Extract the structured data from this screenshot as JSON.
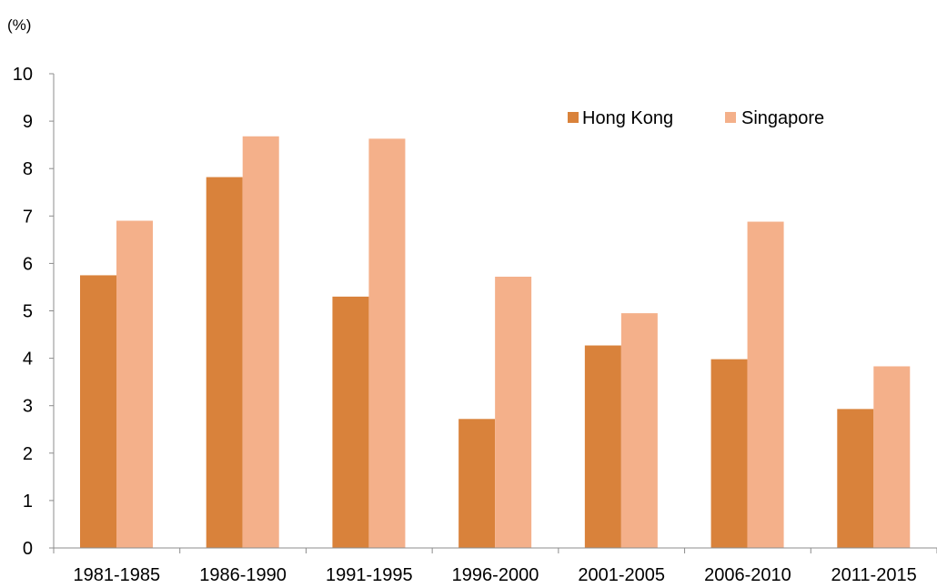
{
  "chart_data": {
    "type": "bar",
    "unit_label": "(%)",
    "categories": [
      "1981-1985",
      "1986-1990",
      "1991-1995",
      "1996-2000",
      "2001-2005",
      "2006-2010",
      "2011-2015"
    ],
    "series": [
      {
        "name": "Hong Kong",
        "color": "#D9823B",
        "values": [
          5.75,
          7.82,
          5.3,
          2.72,
          4.27,
          3.98,
          2.93
        ]
      },
      {
        "name": "Singapore",
        "color": "#F4B08A",
        "values": [
          6.9,
          8.68,
          8.63,
          5.72,
          4.95,
          6.88,
          3.83
        ]
      }
    ],
    "ylim": [
      0,
      10
    ],
    "yticks": [
      "0",
      "1",
      "2",
      "3",
      "4",
      "5",
      "6",
      "7",
      "8",
      "9",
      "10"
    ],
    "grid": false,
    "legend_position": "top-right"
  }
}
